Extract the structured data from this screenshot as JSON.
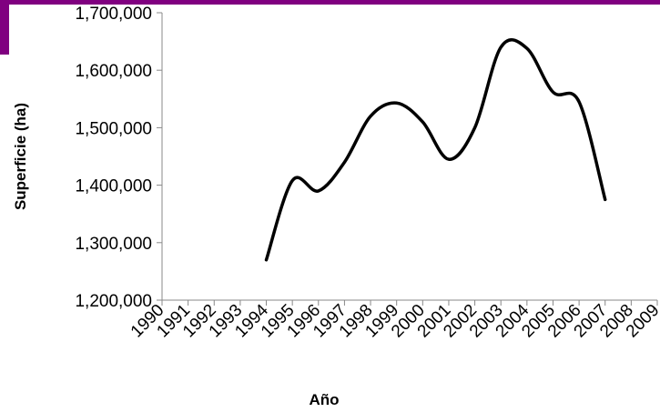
{
  "colors": {
    "accent": "#800080",
    "line": "#000000"
  },
  "chart_data": {
    "type": "line",
    "title": "",
    "xlabel": "Año",
    "ylabel": "Superficie (ha)",
    "x_categories": [
      "1990",
      "1991",
      "1992",
      "1993",
      "1994",
      "1995",
      "1996",
      "1997",
      "1998",
      "1999",
      "2000",
      "2001",
      "2002",
      "2003",
      "2004",
      "2005",
      "2006",
      "2007",
      "2008",
      "2009"
    ],
    "y_ticks": [
      "1,200,000",
      "1,300,000",
      "1,400,000",
      "1,500,000",
      "1,600,000",
      "1,700,000"
    ],
    "ylim": [
      1200000,
      1700000
    ],
    "grid": false,
    "legend": "none",
    "series": [
      {
        "x": [
          "1994",
          "1995",
          "1996",
          "1997",
          "1998",
          "1999",
          "2000",
          "2001",
          "2002",
          "2003",
          "2004",
          "2005",
          "2006",
          "2007"
        ],
        "values": [
          1270000,
          1408000,
          1390000,
          1440000,
          1520000,
          1543000,
          1510000,
          1445000,
          1500000,
          1640000,
          1638000,
          1562000,
          1545000,
          1375000
        ]
      }
    ]
  }
}
